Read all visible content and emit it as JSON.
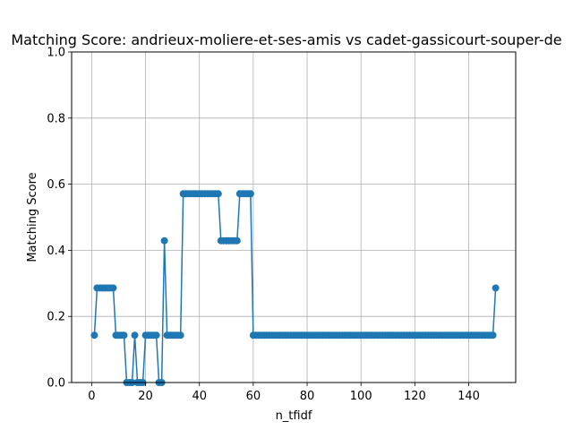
{
  "chart_data": {
    "type": "line",
    "title": "Matching Score: andrieux-moliere-et-ses-amis vs cadet-gassicourt-souper-de",
    "xlabel": "n_tfidf",
    "ylabel": "Matching Score",
    "xlim": [
      -7.45,
      157.45
    ],
    "ylim": [
      0,
      1
    ],
    "xticks": [
      0,
      20,
      40,
      60,
      80,
      100,
      120,
      140
    ],
    "yticks": [
      0.0,
      0.2,
      0.4,
      0.6,
      0.8,
      1.0
    ],
    "xtick_labels": [
      "0",
      "20",
      "40",
      "60",
      "80",
      "100",
      "120",
      "140"
    ],
    "ytick_labels": [
      "0.0",
      "0.2",
      "0.4",
      "0.6",
      "0.8",
      "1.0"
    ],
    "grid": true,
    "color": "#1f77b4",
    "series": [
      {
        "x": [
          1,
          2,
          3,
          4,
          5,
          6,
          7,
          8,
          9,
          10,
          11,
          12,
          13,
          14,
          15,
          16,
          17,
          18,
          19,
          20,
          21,
          22,
          23,
          24,
          25,
          26,
          27,
          28,
          29,
          30,
          31,
          32,
          33,
          34,
          35,
          36,
          37,
          38,
          39,
          40,
          41,
          42,
          43,
          44,
          45,
          46,
          47,
          48,
          49,
          50,
          51,
          52,
          53,
          54,
          55,
          56,
          57,
          58,
          59,
          60,
          61,
          62,
          63,
          64,
          65,
          66,
          67,
          68,
          69,
          70,
          71,
          72,
          73,
          74,
          75,
          76,
          77,
          78,
          79,
          80,
          81,
          82,
          83,
          84,
          85,
          86,
          87,
          88,
          89,
          90,
          91,
          92,
          93,
          94,
          95,
          96,
          97,
          98,
          99,
          100,
          101,
          102,
          103,
          104,
          105,
          106,
          107,
          108,
          109,
          110,
          111,
          112,
          113,
          114,
          115,
          116,
          117,
          118,
          119,
          120,
          121,
          122,
          123,
          124,
          125,
          126,
          127,
          128,
          129,
          130,
          131,
          132,
          133,
          134,
          135,
          136,
          137,
          138,
          139,
          140,
          141,
          142,
          143,
          144,
          145,
          146,
          147,
          148,
          149,
          150
        ],
        "values": [
          0.143,
          0.286,
          0.286,
          0.286,
          0.286,
          0.286,
          0.286,
          0.286,
          0.143,
          0.143,
          0.143,
          0.143,
          0,
          0,
          0,
          0.143,
          0,
          0,
          0,
          0.143,
          0.143,
          0.143,
          0.143,
          0.143,
          0,
          0,
          0.429,
          0.143,
          0.143,
          0.143,
          0.143,
          0.143,
          0.143,
          0.571,
          0.571,
          0.571,
          0.571,
          0.571,
          0.571,
          0.571,
          0.571,
          0.571,
          0.571,
          0.571,
          0.571,
          0.571,
          0.571,
          0.429,
          0.429,
          0.429,
          0.429,
          0.429,
          0.429,
          0.429,
          0.571,
          0.571,
          0.571,
          0.571,
          0.571,
          0.143,
          0.143,
          0.143,
          0.143,
          0.143,
          0.143,
          0.143,
          0.143,
          0.143,
          0.143,
          0.143,
          0.143,
          0.143,
          0.143,
          0.143,
          0.143,
          0.143,
          0.143,
          0.143,
          0.143,
          0.143,
          0.143,
          0.143,
          0.143,
          0.143,
          0.143,
          0.143,
          0.143,
          0.143,
          0.143,
          0.143,
          0.143,
          0.143,
          0.143,
          0.143,
          0.143,
          0.143,
          0.143,
          0.143,
          0.143,
          0.143,
          0.143,
          0.143,
          0.143,
          0.143,
          0.143,
          0.143,
          0.143,
          0.143,
          0.143,
          0.143,
          0.143,
          0.143,
          0.143,
          0.143,
          0.143,
          0.143,
          0.143,
          0.143,
          0.143,
          0.143,
          0.143,
          0.143,
          0.143,
          0.143,
          0.143,
          0.143,
          0.143,
          0.143,
          0.143,
          0.143,
          0.143,
          0.143,
          0.143,
          0.143,
          0.143,
          0.143,
          0.143,
          0.143,
          0.143,
          0.143,
          0.143,
          0.143,
          0.143,
          0.143,
          0.143,
          0.143,
          0.143,
          0.143,
          0.143,
          0.286
        ]
      }
    ]
  }
}
